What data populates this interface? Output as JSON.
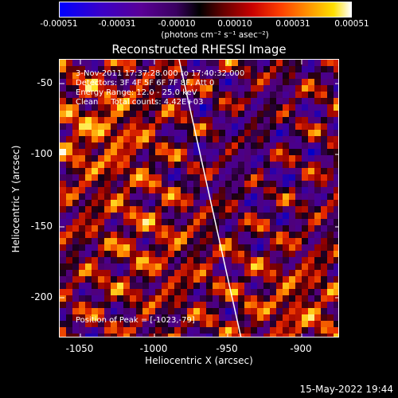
{
  "colorbar": {
    "ticks": [
      "-0.00051",
      "-0.00031",
      "-0.00010",
      "0.00010",
      "0.00031",
      "0.00051"
    ],
    "units": "(photons cm⁻² s⁻¹ asec⁻²)"
  },
  "title": "Reconstructed RHESSI Image",
  "info": {
    "time": "3-Nov-2011 17:37:28.000 to 17:40:32.000",
    "detectors": "Detectors: 3F 4F 5F 6F 7F 8F, Att 0",
    "energy": "Energy Range: 12.0 - 25.0 keV",
    "clean": "Clean     Total counts: 4.42E+03",
    "peak": "Position of Peak = [-1023,-79]"
  },
  "axes": {
    "xlabel": "Heliocentric X (arcsec)",
    "ylabel": "Heliocentric Y (arcsec)",
    "xticks": [
      "-1050",
      "-1000",
      "-950",
      "-900"
    ],
    "yticks": [
      "-50",
      "-100",
      "-150",
      "-200"
    ]
  },
  "footer": {
    "timestamp": "15-May-2022 19:44"
  },
  "colors": {
    "background": "#000000",
    "limb": "#ffffff"
  }
}
